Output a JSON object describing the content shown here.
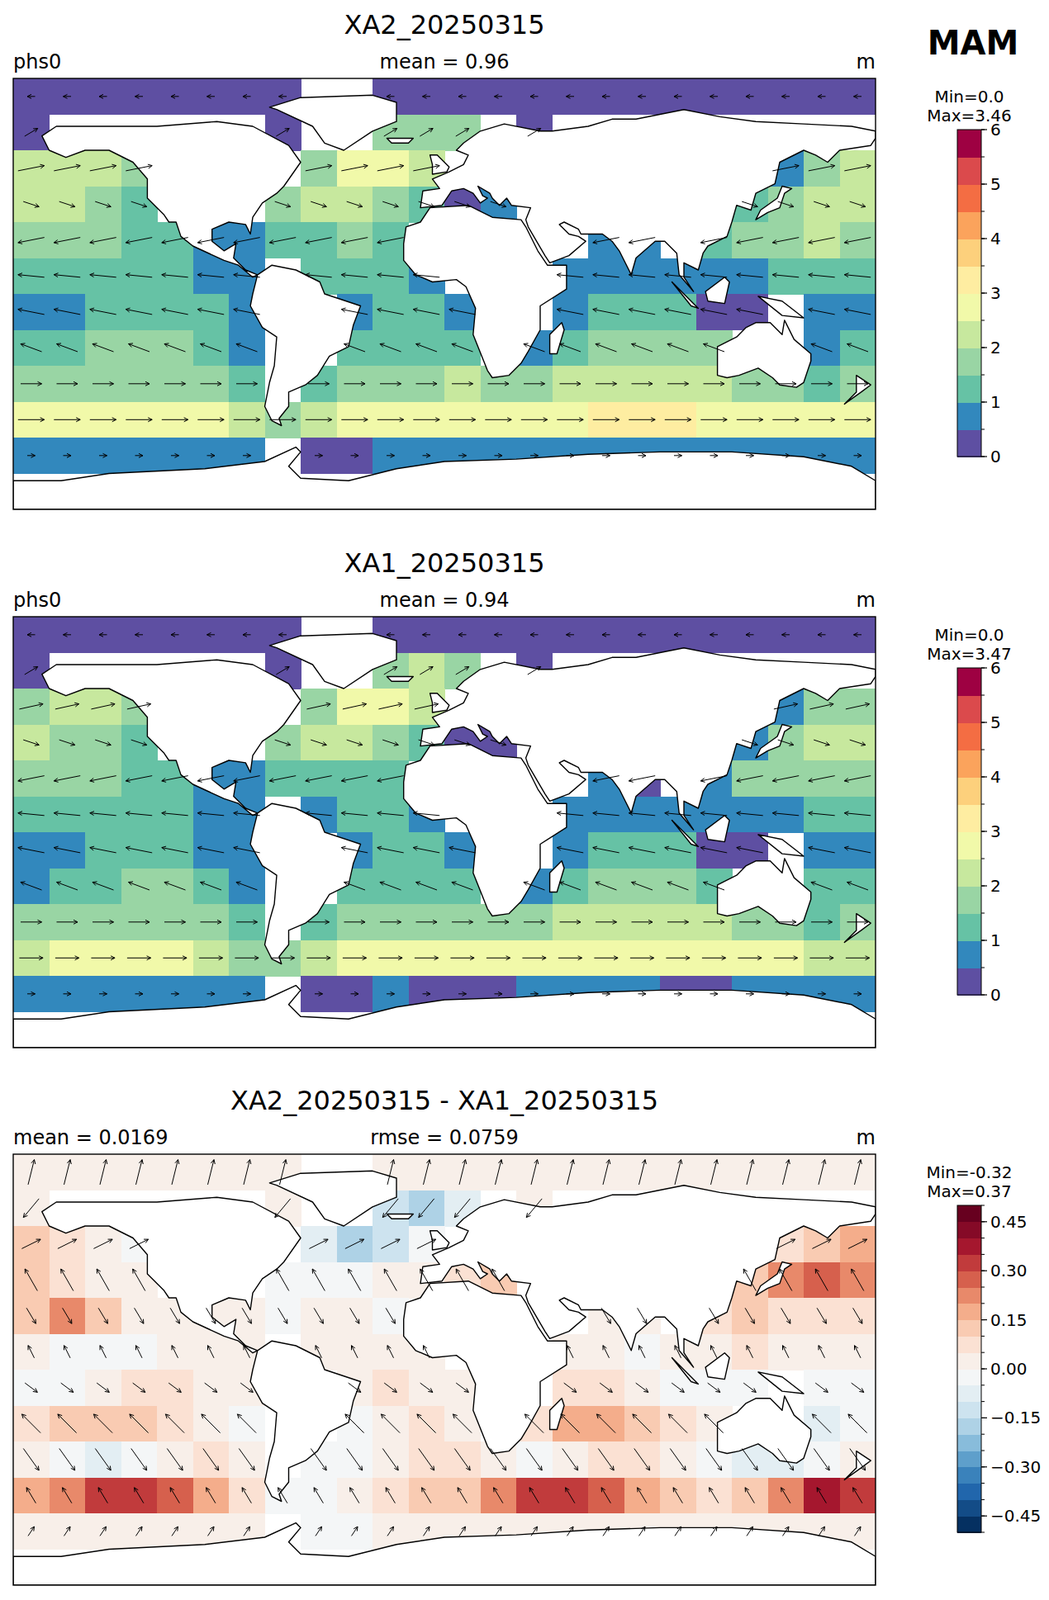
{
  "figure_label": "MAM",
  "chart_data": [
    {
      "type": "map",
      "title": "XA2_20250315",
      "subtitle_left": "phs0",
      "subtitle_center": "mean = 0.96",
      "subtitle_right": "m",
      "xlim": [
        -180,
        180
      ],
      "ylim": [
        -90,
        90
      ],
      "tick_labels": false,
      "z": [
        [
          0.2,
          0.2,
          0.2,
          0.2,
          0.2,
          0.2,
          0.2,
          0.2,
          null,
          null,
          0.2,
          0.2,
          0.2,
          0.2,
          0.2,
          0.2,
          0.2,
          0.2,
          0.2,
          0.2,
          0.2,
          0.2,
          0.2,
          0.2
        ],
        [
          0.2,
          null,
          null,
          null,
          null,
          null,
          null,
          0.3,
          null,
          null,
          1.5,
          1.8,
          1.6,
          null,
          0.3,
          null,
          null,
          null,
          null,
          null,
          null,
          null,
          null,
          null
        ],
        [
          2.0,
          2.2,
          2.0,
          1.5,
          null,
          null,
          null,
          null,
          1.8,
          2.6,
          2.5,
          2.0,
          null,
          null,
          null,
          null,
          null,
          null,
          null,
          null,
          null,
          0.6,
          1.8,
          2.0
        ],
        [
          2.2,
          2.0,
          1.6,
          1.3,
          null,
          null,
          null,
          1.8,
          2.2,
          2.0,
          1.8,
          1.2,
          0.4,
          0.5,
          null,
          null,
          null,
          null,
          null,
          null,
          1.0,
          1.8,
          2.3,
          2.4
        ],
        [
          1.8,
          1.7,
          1.6,
          1.4,
          1.0,
          0.8,
          0.7,
          1.3,
          1.4,
          1.5,
          1.3,
          null,
          null,
          null,
          null,
          null,
          0.6,
          0.5,
          null,
          1.0,
          1.6,
          1.8,
          2.0,
          1.9
        ],
        [
          1.3,
          1.2,
          1.1,
          1.0,
          1.0,
          0.8,
          0.6,
          null,
          1.0,
          1.2,
          1.0,
          0.6,
          null,
          null,
          null,
          0.8,
          0.9,
          0.8,
          0.6,
          0.5,
          0.8,
          1.0,
          1.1,
          1.3
        ],
        [
          0.8,
          0.9,
          1.0,
          1.1,
          1.1,
          1.0,
          0.9,
          null,
          null,
          0.9,
          1.1,
          1.2,
          0.8,
          null,
          null,
          0.9,
          1.1,
          1.2,
          1.0,
          0.4,
          0.4,
          null,
          0.6,
          0.8
        ],
        [
          1.0,
          1.2,
          1.5,
          1.7,
          1.6,
          1.3,
          0.9,
          null,
          null,
          1.0,
          1.2,
          1.3,
          1.0,
          null,
          0.9,
          1.4,
          1.7,
          1.9,
          1.7,
          1.5,
          null,
          null,
          0.9,
          1.0
        ],
        [
          1.5,
          1.7,
          1.8,
          1.8,
          1.9,
          1.7,
          1.3,
          null,
          1.1,
          1.6,
          1.8,
          1.9,
          2.0,
          1.8,
          1.8,
          2.0,
          2.2,
          2.4,
          2.3,
          2.1,
          1.6,
          1.5,
          1.4,
          1.8
        ],
        [
          2.6,
          2.7,
          2.8,
          2.8,
          2.8,
          2.6,
          2.0,
          1.5,
          2.3,
          2.5,
          2.7,
          2.8,
          2.9,
          2.9,
          2.9,
          2.9,
          3.0,
          3.0,
          3.0,
          2.9,
          2.9,
          2.8,
          2.8,
          2.7
        ],
        [
          0.7,
          0.7,
          0.6,
          0.6,
          0.6,
          0.6,
          0.5,
          null,
          0.4,
          0.4,
          0.5,
          0.5,
          0.5,
          0.5,
          0.6,
          0.6,
          0.6,
          0.6,
          0.5,
          0.5,
          0.6,
          0.6,
          0.6,
          0.7
        ],
        [
          null,
          null,
          null,
          null,
          null,
          null,
          null,
          null,
          null,
          null,
          null,
          null,
          null,
          null,
          null,
          null,
          null,
          null,
          null,
          null,
          null,
          null,
          null,
          null
        ]
      ],
      "vector_u": [
        -0.3,
        0.5,
        1.0,
        0.6,
        -1.0,
        -1.0,
        -1.0,
        -0.8,
        0.8,
        1.0,
        0.3,
        null
      ],
      "vector_v": [
        0.0,
        0.3,
        0.2,
        -0.2,
        -0.2,
        0.1,
        0.2,
        0.3,
        0.0,
        0.0,
        0.0,
        null
      ],
      "colorbar_levels": [
        0,
        0.5,
        1,
        1.5,
        2,
        2.5,
        3,
        3.5,
        4,
        4.5,
        5,
        5.5,
        6
      ],
      "colorbar_ticks": [
        0,
        1,
        2,
        3,
        4,
        5,
        6
      ],
      "colors": [
        "#5e4fa2",
        "#3288bd",
        "#66c2a5",
        "#99d5a4",
        "#c7e89e",
        "#f1f9a9",
        "#feeda1",
        "#fdd07c",
        "#fba35c",
        "#f46d43",
        "#db4a4c",
        "#9e0142"
      ],
      "colorbar_min_label": "Min=0.0",
      "colorbar_max_label": "Max=3.46"
    },
    {
      "type": "map",
      "title": "XA1_20250315",
      "subtitle_left": "phs0",
      "subtitle_center": "mean = 0.94",
      "subtitle_right": "m",
      "xlim": [
        -180,
        180
      ],
      "ylim": [
        -90,
        90
      ],
      "tick_labels": false,
      "z": [
        [
          0.18,
          0.18,
          0.18,
          0.18,
          0.18,
          0.18,
          0.18,
          0.18,
          null,
          null,
          0.18,
          0.18,
          0.18,
          0.18,
          0.18,
          0.18,
          0.18,
          0.18,
          0.18,
          0.18,
          0.18,
          0.18,
          0.18,
          0.18
        ],
        [
          0.18,
          null,
          null,
          null,
          null,
          null,
          null,
          0.3,
          null,
          null,
          1.65,
          2.0,
          1.7,
          null,
          0.28,
          null,
          null,
          null,
          null,
          null,
          null,
          null,
          null,
          null
        ],
        [
          1.9,
          2.15,
          2.0,
          1.52,
          null,
          null,
          null,
          null,
          1.9,
          2.8,
          2.65,
          2.05,
          null,
          null,
          null,
          null,
          null,
          null,
          null,
          null,
          null,
          0.55,
          1.7,
          1.85
        ],
        [
          2.1,
          1.92,
          1.57,
          1.3,
          null,
          null,
          null,
          1.85,
          2.25,
          2.03,
          1.8,
          1.18,
          0.32,
          0.4,
          null,
          null,
          null,
          null,
          null,
          null,
          0.9,
          1.6,
          2.05,
          2.2
        ],
        [
          1.7,
          1.5,
          1.5,
          1.38,
          1.0,
          0.78,
          0.7,
          1.32,
          1.4,
          1.48,
          1.32,
          null,
          null,
          null,
          null,
          null,
          0.6,
          0.48,
          null,
          0.95,
          1.5,
          1.72,
          1.95,
          1.85
        ],
        [
          1.3,
          1.23,
          1.15,
          1.03,
          1.0,
          0.78,
          0.6,
          null,
          0.98,
          1.17,
          1.0,
          0.6,
          null,
          null,
          null,
          0.78,
          0.9,
          0.82,
          0.6,
          0.5,
          0.75,
          0.97,
          1.08,
          1.3
        ],
        [
          0.85,
          0.93,
          1.0,
          1.05,
          1.05,
          0.97,
          0.9,
          null,
          null,
          0.88,
          1.05,
          1.17,
          0.8,
          null,
          null,
          0.85,
          1.05,
          1.2,
          1.02,
          0.45,
          0.45,
          null,
          0.63,
          0.85
        ],
        [
          0.95,
          1.1,
          1.38,
          1.6,
          1.55,
          1.3,
          0.95,
          null,
          null,
          1.05,
          1.2,
          1.25,
          1.0,
          null,
          0.85,
          1.25,
          1.55,
          1.8,
          1.65,
          1.48,
          null,
          null,
          1.0,
          1.05
        ],
        [
          1.5,
          1.75,
          1.88,
          1.85,
          1.9,
          1.65,
          1.28,
          null,
          1.15,
          1.65,
          1.8,
          1.85,
          1.95,
          1.8,
          1.85,
          2.0,
          2.15,
          2.35,
          2.3,
          2.15,
          1.7,
          1.6,
          1.45,
          1.8
        ],
        [
          2.45,
          2.5,
          2.5,
          2.5,
          2.55,
          2.45,
          1.95,
          1.55,
          2.35,
          2.5,
          2.65,
          2.7,
          2.8,
          2.7,
          2.6,
          2.6,
          2.75,
          2.85,
          2.9,
          2.85,
          2.8,
          2.6,
          2.45,
          2.4
        ],
        [
          0.68,
          0.68,
          0.58,
          0.58,
          0.58,
          0.58,
          0.5,
          null,
          0.43,
          0.43,
          0.5,
          0.48,
          0.48,
          0.48,
          0.58,
          0.58,
          0.58,
          0.58,
          0.48,
          0.48,
          0.58,
          0.58,
          0.58,
          0.68
        ],
        [
          null,
          null,
          null,
          null,
          null,
          null,
          null,
          null,
          null,
          null,
          null,
          null,
          null,
          null,
          null,
          null,
          null,
          null,
          null,
          null,
          null,
          null,
          null,
          null
        ]
      ],
      "vector_u": [
        -0.3,
        0.5,
        0.9,
        0.6,
        -1.0,
        -1.0,
        -1.0,
        -0.8,
        0.8,
        0.9,
        0.3,
        null
      ],
      "vector_v": [
        0.0,
        0.3,
        0.2,
        -0.2,
        -0.2,
        0.1,
        0.2,
        0.3,
        0.0,
        0.0,
        0.0,
        null
      ],
      "colorbar_levels": [
        0,
        0.5,
        1,
        1.5,
        2,
        2.5,
        3,
        3.5,
        4,
        4.5,
        5,
        5.5,
        6
      ],
      "colorbar_ticks": [
        0,
        1,
        2,
        3,
        4,
        5,
        6
      ],
      "colors": [
        "#5e4fa2",
        "#3288bd",
        "#66c2a5",
        "#99d5a4",
        "#c7e89e",
        "#f1f9a9",
        "#feeda1",
        "#fdd07c",
        "#fba35c",
        "#f46d43",
        "#db4a4c",
        "#9e0142"
      ],
      "colorbar_min_label": "Min=0.0",
      "colorbar_max_label": "Max=3.47"
    },
    {
      "type": "map",
      "title": "XA2_20250315 - XA1_20250315",
      "subtitle_left": "mean = 0.0169",
      "subtitle_center": "rmse = 0.0759",
      "subtitle_right": "m",
      "xlim": [
        -180,
        180
      ],
      "ylim": [
        -90,
        90
      ],
      "tick_labels": false,
      "z": [
        [
          0.02,
          0.02,
          0.02,
          0.02,
          0.02,
          0.02,
          0.02,
          0.02,
          null,
          null,
          0.02,
          0.02,
          0.02,
          0.02,
          0.02,
          0.02,
          0.02,
          0.02,
          0.02,
          0.02,
          0.02,
          0.02,
          0.02,
          0.02
        ],
        [
          0.02,
          null,
          null,
          null,
          null,
          null,
          null,
          0.0,
          null,
          null,
          -0.15,
          -0.2,
          -0.1,
          null,
          0.02,
          null,
          null,
          null,
          null,
          null,
          null,
          null,
          null,
          null
        ],
        [
          0.1,
          0.05,
          0.0,
          -0.02,
          null,
          null,
          null,
          null,
          -0.1,
          -0.2,
          -0.15,
          -0.05,
          null,
          null,
          null,
          null,
          null,
          null,
          null,
          null,
          null,
          0.05,
          0.1,
          0.15
        ],
        [
          0.1,
          0.08,
          0.03,
          0.0,
          null,
          null,
          null,
          -0.05,
          -0.05,
          -0.03,
          0.0,
          0.02,
          0.08,
          0.1,
          null,
          null,
          null,
          null,
          null,
          null,
          0.1,
          0.2,
          0.25,
          0.2
        ],
        [
          0.1,
          0.2,
          0.1,
          0.02,
          0.0,
          0.02,
          0.0,
          -0.02,
          0.0,
          0.02,
          -0.02,
          null,
          null,
          null,
          null,
          null,
          0.0,
          0.02,
          null,
          0.05,
          0.1,
          0.08,
          0.05,
          0.05
        ],
        [
          0.0,
          -0.03,
          -0.05,
          -0.03,
          0.0,
          0.02,
          0.0,
          null,
          0.02,
          0.03,
          0.0,
          0.0,
          null,
          null,
          null,
          0.02,
          0.0,
          -0.02,
          0.0,
          0.0,
          0.05,
          0.03,
          0.02,
          0.0
        ],
        [
          -0.05,
          -0.03,
          0.0,
          0.05,
          0.05,
          0.03,
          0.0,
          null,
          null,
          0.02,
          0.05,
          0.03,
          0.0,
          null,
          null,
          0.05,
          0.05,
          0.0,
          -0.02,
          -0.05,
          -0.05,
          null,
          -0.03,
          -0.05
        ],
        [
          0.05,
          0.1,
          0.12,
          0.1,
          0.05,
          0.0,
          -0.05,
          null,
          null,
          -0.05,
          0.0,
          0.05,
          0.0,
          null,
          0.05,
          0.15,
          0.15,
          0.1,
          0.05,
          0.02,
          null,
          null,
          -0.1,
          -0.05
        ],
        [
          0.0,
          -0.05,
          -0.08,
          -0.05,
          0.0,
          0.05,
          0.02,
          null,
          -0.05,
          -0.05,
          0.0,
          0.05,
          0.05,
          0.0,
          -0.05,
          0.0,
          0.05,
          0.05,
          0.0,
          -0.05,
          -0.1,
          -0.1,
          -0.05,
          0.0
        ],
        [
          0.15,
          0.2,
          0.3,
          0.3,
          0.25,
          0.15,
          0.05,
          -0.05,
          -0.05,
          0.0,
          0.05,
          0.1,
          0.1,
          0.2,
          0.3,
          0.3,
          0.25,
          0.15,
          0.1,
          0.05,
          0.1,
          0.2,
          0.35,
          0.3
        ],
        [
          0.02,
          0.02,
          0.02,
          0.02,
          0.02,
          0.02,
          0.0,
          null,
          -0.03,
          -0.03,
          0.0,
          0.02,
          0.02,
          0.02,
          0.02,
          0.02,
          0.02,
          0.02,
          0.02,
          0.02,
          0.02,
          0.02,
          0.02,
          0.02
        ],
        [
          null,
          null,
          null,
          null,
          null,
          null,
          null,
          null,
          null,
          null,
          null,
          null,
          null,
          null,
          null,
          null,
          null,
          null,
          null,
          null,
          null,
          null,
          null,
          null
        ]
      ],
      "vector_u": [
        0.2,
        -0.5,
        0.6,
        -0.4,
        0.3,
        -0.2,
        0.4,
        -0.6,
        0.5,
        -0.3,
        0.2,
        null
      ],
      "vector_v": [
        0.8,
        -0.6,
        0.3,
        0.7,
        -0.5,
        0.4,
        -0.3,
        0.6,
        -0.7,
        0.5,
        0.3,
        null
      ],
      "colorbar_levels": [
        -0.5,
        -0.45,
        -0.4,
        -0.35,
        -0.3,
        -0.25,
        -0.2,
        -0.15,
        -0.1,
        -0.05,
        0,
        0.05,
        0.1,
        0.15,
        0.2,
        0.25,
        0.3,
        0.35,
        0.4,
        0.45,
        0.5
      ],
      "colorbar_ticks": [
        {
          "value": -0.45,
          "label": "−0.45"
        },
        {
          "value": -0.3,
          "label": "−0.30"
        },
        {
          "value": -0.15,
          "label": "−0.15"
        },
        {
          "value": 0,
          "label": "0.00"
        },
        {
          "value": 0.15,
          "label": "0.15"
        },
        {
          "value": 0.3,
          "label": "0.30"
        },
        {
          "value": 0.45,
          "label": "0.45"
        }
      ],
      "colors": [
        "#053061",
        "#134c87",
        "#2166ac",
        "#3a82bb",
        "#5e9fcb",
        "#88bcdb",
        "#aed2e6",
        "#cde3ef",
        "#e3eef3",
        "#f4f6f7",
        "#f8efe9",
        "#fbe1d3",
        "#f9cbb2",
        "#f4ad8b",
        "#e8896a",
        "#d6604d",
        "#c13b3c",
        "#a5172e",
        "#850a27",
        "#67001f"
      ],
      "colorbar_min_label": "Min=-0.32",
      "colorbar_max_label": "Max=0.37"
    }
  ]
}
